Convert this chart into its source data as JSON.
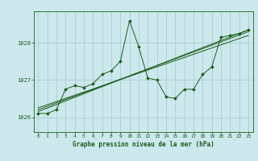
{
  "title": "Graphe pression niveau de la mer (hPa)",
  "background_color": "#cce8ec",
  "grid_color": "#a8cdd4",
  "line_color": "#1a5c1a",
  "xlim": [
    -0.5,
    23.5
  ],
  "ylim": [
    1025.6,
    1028.85
  ],
  "yticks": [
    1026,
    1027,
    1028
  ],
  "xticks": [
    0,
    1,
    2,
    3,
    4,
    5,
    6,
    7,
    8,
    9,
    10,
    11,
    12,
    13,
    14,
    15,
    16,
    17,
    18,
    19,
    20,
    21,
    22,
    23
  ],
  "series1_x": [
    0,
    1,
    2,
    3,
    4,
    5,
    6,
    7,
    8,
    9,
    10,
    11,
    12,
    13,
    14,
    15,
    16,
    17,
    18,
    19,
    20,
    21,
    22,
    23
  ],
  "series1_y": [
    1026.1,
    1026.1,
    1026.2,
    1026.75,
    1026.85,
    1026.8,
    1026.9,
    1027.15,
    1027.25,
    1027.5,
    1028.6,
    1027.9,
    1027.05,
    1027.0,
    1026.55,
    1026.5,
    1026.75,
    1026.75,
    1027.15,
    1027.35,
    1028.15,
    1028.2,
    1028.25,
    1028.35
  ],
  "series2_x": [
    0,
    23
  ],
  "series2_y": [
    1026.15,
    1028.35
  ],
  "series3_x": [
    0,
    23
  ],
  "series3_y": [
    1026.2,
    1028.3
  ],
  "series4_x": [
    0,
    23
  ],
  "series4_y": [
    1026.25,
    1028.2
  ]
}
